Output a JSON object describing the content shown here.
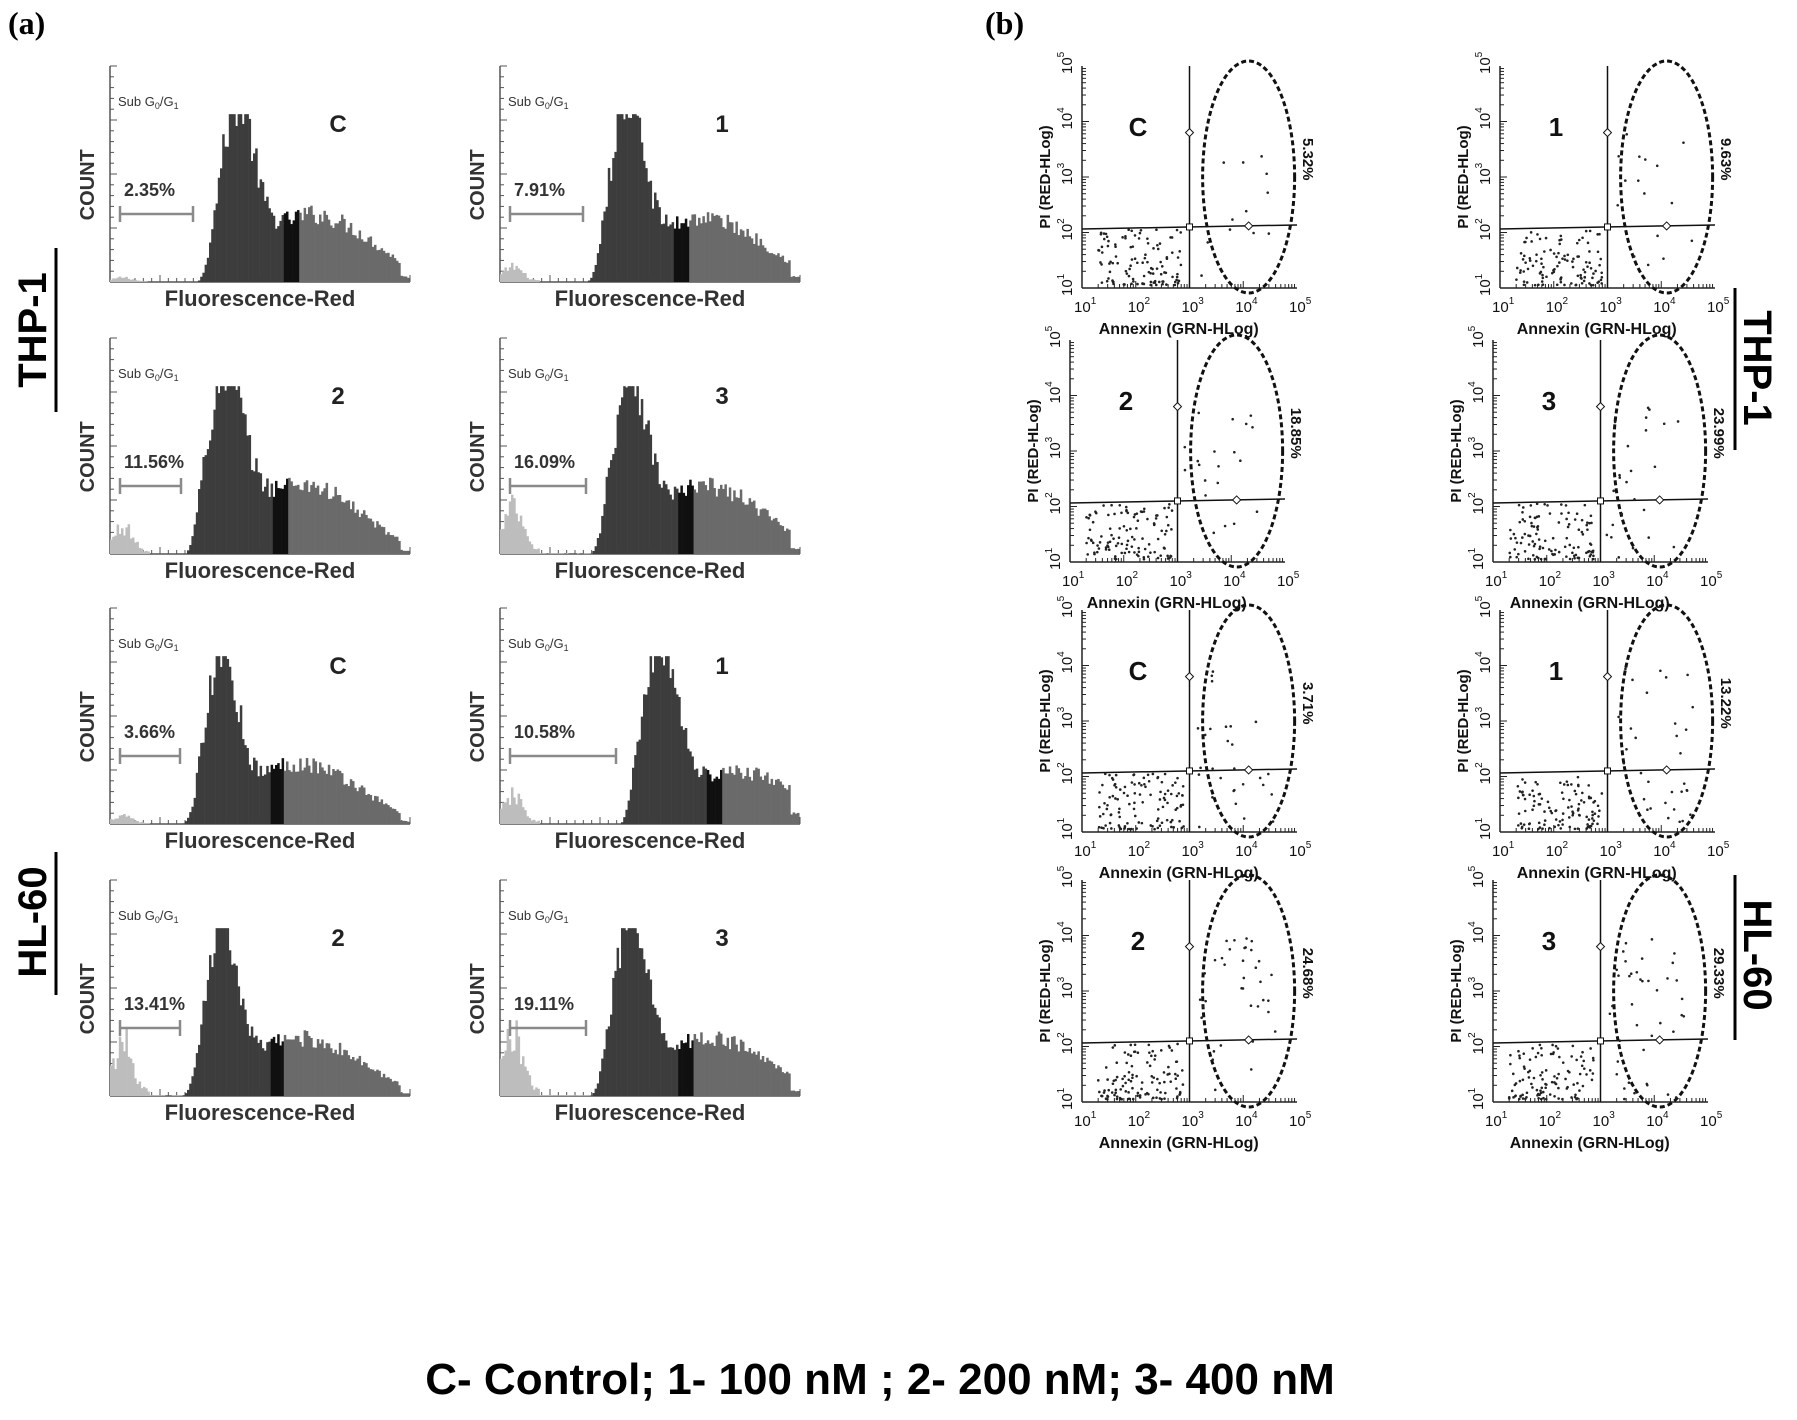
{
  "panel_labels": {
    "a": "(a)",
    "b": "(b)"
  },
  "cell_lines": [
    "THP-1",
    "HL-60"
  ],
  "legend_text": "C- Control;  1- 100 nM ; 2- 200 nM; 3- 400 nM",
  "chart_data": [
    {
      "type": "histogram",
      "panel": "(a)",
      "xlabel": "Fluorescence-Red",
      "ylabel": "COUNT",
      "gate_label_prefix": "Sub G",
      "gate_label_sub1": "0",
      "gate_label_mid": "/G",
      "gate_label_sub2": "1",
      "series": [
        {
          "cell_line": "THP-1",
          "treatment": "C",
          "sub_g0g1": "2.35%"
        },
        {
          "cell_line": "THP-1",
          "treatment": "1",
          "sub_g0g1": "7.91%"
        },
        {
          "cell_line": "THP-1",
          "treatment": "2",
          "sub_g0g1": "11.56%"
        },
        {
          "cell_line": "THP-1",
          "treatment": "3",
          "sub_g0g1": "16.09%"
        },
        {
          "cell_line": "HL-60",
          "treatment": "C",
          "sub_g0g1": "3.66%"
        },
        {
          "cell_line": "HL-60",
          "treatment": "1",
          "sub_g0g1": "10.58%"
        },
        {
          "cell_line": "HL-60",
          "treatment": "2",
          "sub_g0g1": "13.41%"
        },
        {
          "cell_line": "HL-60",
          "treatment": "3",
          "sub_g0g1": "19.11%"
        }
      ]
    },
    {
      "type": "scatter",
      "panel": "(b)",
      "xlabel": "Annexin (GRN-HLog)",
      "ylabel": "PI (RED-HLog)",
      "scale": "log",
      "tick_base": "10",
      "tick_exponents": [
        "1",
        "2",
        "3",
        "4",
        "5"
      ],
      "series": [
        {
          "cell_line": "THP-1",
          "treatment": "C",
          "apoptotic": "5.32%"
        },
        {
          "cell_line": "THP-1",
          "treatment": "1",
          "apoptotic": "9.63%"
        },
        {
          "cell_line": "THP-1",
          "treatment": "2",
          "apoptotic": "18.85%"
        },
        {
          "cell_line": "THP-1",
          "treatment": "3",
          "apoptotic": "23.99%"
        },
        {
          "cell_line": "HL-60",
          "treatment": "C",
          "apoptotic": "3.71%"
        },
        {
          "cell_line": "HL-60",
          "treatment": "1",
          "apoptotic": "13.22%"
        },
        {
          "cell_line": "HL-60",
          "treatment": "2",
          "apoptotic": "24.68%"
        },
        {
          "cell_line": "HL-60",
          "treatment": "3",
          "apoptotic": "29.33%"
        }
      ]
    }
  ]
}
